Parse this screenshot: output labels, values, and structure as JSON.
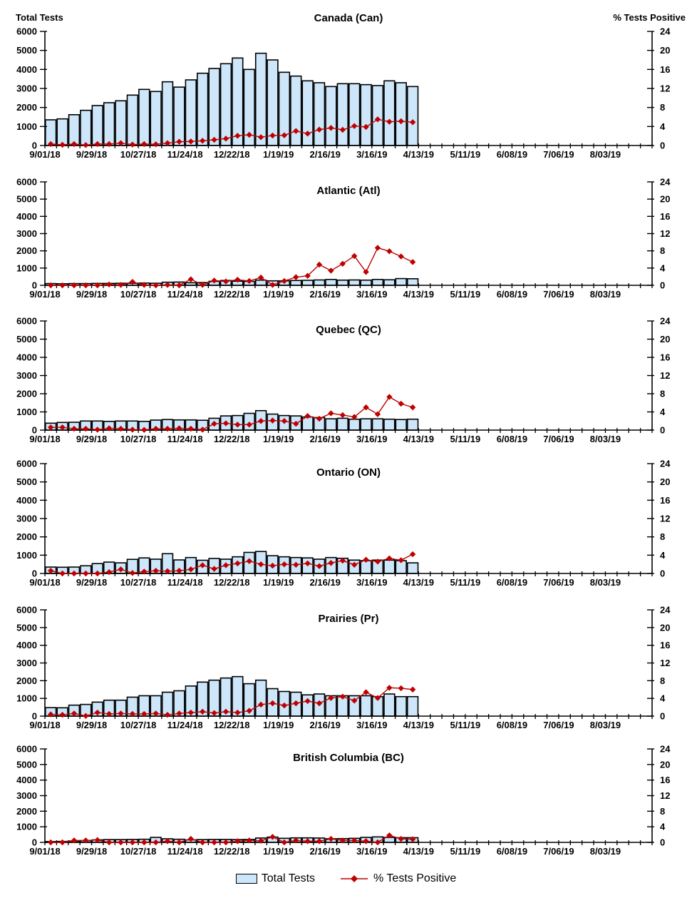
{
  "figure": {
    "left_axis_title": "Total Tests",
    "right_axis_title": "% Tests Positive",
    "legend": {
      "total_tests": "Total Tests",
      "pct_positive": "% Tests Positive"
    },
    "colors": {
      "bar_fill": "#CDE6FA",
      "bar_stroke": "#000000",
      "line": "#C00000",
      "text": "#000000"
    }
  },
  "chart_data": [
    {
      "type": "bar",
      "title": "Canada (Can)",
      "categories": [
        "9/01/18",
        "9/08/18",
        "9/15/18",
        "9/22/18",
        "9/29/18",
        "10/06/18",
        "10/13/18",
        "10/20/18",
        "10/27/18",
        "11/03/18",
        "11/10/18",
        "11/17/18",
        "11/24/18",
        "12/01/18",
        "12/08/18",
        "12/15/18",
        "12/22/18",
        "12/29/18",
        "1/05/19",
        "1/12/19",
        "1/19/19",
        "1/26/19",
        "2/02/19",
        "2/09/19",
        "2/16/19",
        "2/23/19",
        "3/02/19",
        "3/09/19",
        "3/16/19",
        "3/23/19",
        "3/30/19",
        "4/06/19"
      ],
      "xlabel": "",
      "ylabel_left": "Total Tests",
      "ylabel_right": "% Tests Positive",
      "ylim_left": [
        0,
        6000
      ],
      "ylim_right": [
        0,
        24
      ],
      "x_tick_labels": [
        "9/01/18",
        "9/29/18",
        "10/27/18",
        "11/24/18",
        "12/22/18",
        "1/19/19",
        "2/16/19",
        "3/16/19",
        "4/13/19",
        "5/11/19",
        "6/08/19",
        "7/06/19",
        "8/03/19"
      ],
      "series": [
        {
          "name": "Total Tests",
          "render": "bar",
          "axis": "left",
          "values": [
            1350,
            1400,
            1620,
            1850,
            2100,
            2250,
            2350,
            2650,
            2950,
            2840,
            3350,
            3070,
            3450,
            3800,
            4050,
            4300,
            4600,
            4000,
            4850,
            4500,
            3850,
            3650,
            3400,
            3300,
            3100,
            3250,
            3250,
            3200,
            3150,
            3400,
            3300,
            3100
          ]
        },
        {
          "name": "% Tests Positive",
          "render": "line",
          "axis": "right",
          "values": [
            0.3,
            0.15,
            0.3,
            0.1,
            0.3,
            0.3,
            0.5,
            0.2,
            0.3,
            0.25,
            0.5,
            0.8,
            0.85,
            1.0,
            1.2,
            1.45,
            2.05,
            2.25,
            1.75,
            2.1,
            2.15,
            3.05,
            2.5,
            3.35,
            3.7,
            3.3,
            4.1,
            3.9,
            5.5,
            5.0,
            5.1,
            4.9
          ]
        }
      ]
    },
    {
      "type": "bar",
      "title": "Atlantic (Atl)",
      "categories": [
        "9/01/18",
        "9/08/18",
        "9/15/18",
        "9/22/18",
        "9/29/18",
        "10/06/18",
        "10/13/18",
        "10/20/18",
        "10/27/18",
        "11/03/18",
        "11/10/18",
        "11/17/18",
        "11/24/18",
        "12/01/18",
        "12/08/18",
        "12/15/18",
        "12/22/18",
        "12/29/18",
        "1/05/19",
        "1/12/19",
        "1/19/19",
        "1/26/19",
        "2/02/19",
        "2/09/19",
        "2/16/19",
        "2/23/19",
        "3/02/19",
        "3/09/19",
        "3/16/19",
        "3/23/19",
        "3/30/19",
        "4/06/19"
      ],
      "ylim_left": [
        0,
        6000
      ],
      "ylim_right": [
        0,
        24
      ],
      "x_tick_labels": [
        "9/01/18",
        "9/29/18",
        "10/27/18",
        "11/24/18",
        "12/22/18",
        "1/19/19",
        "2/16/19",
        "3/16/19",
        "4/13/19",
        "5/11/19",
        "6/08/19",
        "7/06/19",
        "8/03/19"
      ],
      "series": [
        {
          "name": "Total Tests",
          "render": "bar",
          "axis": "left",
          "values": [
            100,
            90,
            100,
            100,
            110,
            110,
            120,
            120,
            130,
            120,
            180,
            190,
            150,
            160,
            230,
            280,
            240,
            230,
            300,
            260,
            260,
            280,
            290,
            310,
            340,
            300,
            310,
            300,
            340,
            320,
            390,
            380
          ]
        },
        {
          "name": "% Tests Positive",
          "render": "line",
          "axis": "right",
          "values": [
            0,
            0,
            0,
            0,
            0,
            0.2,
            0.1,
            0.8,
            0.1,
            0,
            0.1,
            0,
            1.4,
            0.1,
            1.1,
            0.9,
            1.3,
            1.0,
            1.8,
            0.1,
            1.0,
            1.9,
            2.2,
            4.8,
            3.4,
            5.0,
            6.8,
            3.1,
            8.7,
            7.9,
            6.7,
            5.4
          ]
        }
      ]
    },
    {
      "type": "bar",
      "title": "Quebec (QC)",
      "categories": [
        "9/01/18",
        "9/08/18",
        "9/15/18",
        "9/22/18",
        "9/29/18",
        "10/06/18",
        "10/13/18",
        "10/20/18",
        "10/27/18",
        "11/03/18",
        "11/10/18",
        "11/17/18",
        "11/24/18",
        "12/01/18",
        "12/08/18",
        "12/15/18",
        "12/22/18",
        "12/29/18",
        "1/05/19",
        "1/12/19",
        "1/19/19",
        "1/26/19",
        "2/02/19",
        "2/09/19",
        "2/16/19",
        "2/23/19",
        "3/02/19",
        "3/09/19",
        "3/16/19",
        "3/23/19",
        "3/30/19",
        "4/06/19"
      ],
      "ylim_left": [
        0,
        6000
      ],
      "ylim_right": [
        0,
        24
      ],
      "x_tick_labels": [
        "9/01/18",
        "9/29/18",
        "10/27/18",
        "11/24/18",
        "12/22/18",
        "1/19/19",
        "2/16/19",
        "3/16/19",
        "4/13/19",
        "5/11/19",
        "6/08/19",
        "7/06/19",
        "8/03/19"
      ],
      "series": [
        {
          "name": "Total Tests",
          "render": "bar",
          "axis": "left",
          "values": [
            380,
            420,
            430,
            500,
            500,
            480,
            500,
            500,
            480,
            550,
            580,
            560,
            560,
            540,
            650,
            780,
            800,
            920,
            1070,
            880,
            800,
            780,
            720,
            690,
            620,
            650,
            600,
            620,
            620,
            600,
            580,
            600
          ]
        },
        {
          "name": "% Tests Positive",
          "render": "line",
          "axis": "right",
          "values": [
            0.6,
            0.6,
            0.3,
            0.3,
            0.1,
            0.4,
            0.3,
            0.1,
            0.05,
            0.3,
            0.3,
            0.4,
            0.3,
            0.1,
            1.4,
            1.5,
            1.2,
            1.2,
            2.0,
            2.1,
            2.0,
            1.4,
            3.1,
            2.5,
            3.7,
            3.3,
            2.9,
            5.0,
            3.5,
            7.3,
            5.8,
            5.0
          ]
        }
      ]
    },
    {
      "type": "bar",
      "title": "Ontario (ON)",
      "categories": [
        "9/01/18",
        "9/08/18",
        "9/15/18",
        "9/22/18",
        "9/29/18",
        "10/06/18",
        "10/13/18",
        "10/20/18",
        "10/27/18",
        "11/03/18",
        "11/10/18",
        "11/17/18",
        "11/24/18",
        "12/01/18",
        "12/08/18",
        "12/15/18",
        "12/22/18",
        "12/29/18",
        "1/05/19",
        "1/12/19",
        "1/19/19",
        "1/26/19",
        "2/02/19",
        "2/09/19",
        "2/16/19",
        "2/23/19",
        "3/02/19",
        "3/09/19",
        "3/16/19",
        "3/23/19",
        "3/30/19",
        "4/06/19"
      ],
      "ylim_left": [
        0,
        6000
      ],
      "ylim_right": [
        0,
        24
      ],
      "x_tick_labels": [
        "9/01/18",
        "9/29/18",
        "10/27/18",
        "11/24/18",
        "12/22/18",
        "1/19/19",
        "2/16/19",
        "3/16/19",
        "4/13/19",
        "5/11/19",
        "6/08/19",
        "7/06/19",
        "8/03/19"
      ],
      "series": [
        {
          "name": "Total Tests",
          "render": "bar",
          "axis": "left",
          "values": [
            350,
            340,
            350,
            420,
            540,
            620,
            580,
            770,
            850,
            780,
            1080,
            740,
            870,
            720,
            820,
            780,
            910,
            1150,
            1200,
            970,
            910,
            870,
            850,
            780,
            870,
            830,
            730,
            700,
            730,
            730,
            700,
            580
          ]
        },
        {
          "name": "% Tests Positive",
          "render": "line",
          "axis": "right",
          "values": [
            0.6,
            0,
            0,
            0,
            0,
            0.3,
            0.9,
            0.1,
            0.4,
            0.6,
            0.5,
            0.6,
            0.9,
            1.8,
            1.0,
            1.8,
            2.2,
            2.7,
            2.0,
            1.7,
            2.0,
            1.9,
            2.2,
            1.6,
            2.3,
            2.8,
            1.9,
            3.0,
            2.6,
            3.3,
            2.9,
            4.2
          ]
        }
      ]
    },
    {
      "type": "bar",
      "title": "Prairies (Pr)",
      "categories": [
        "9/01/18",
        "9/08/18",
        "9/15/18",
        "9/22/18",
        "9/29/18",
        "10/06/18",
        "10/13/18",
        "10/20/18",
        "10/27/18",
        "11/03/18",
        "11/10/18",
        "11/17/18",
        "11/24/18",
        "12/01/18",
        "12/08/18",
        "12/15/18",
        "12/22/18",
        "12/29/18",
        "1/05/19",
        "1/12/19",
        "1/19/19",
        "1/26/19",
        "2/02/19",
        "2/09/19",
        "2/16/19",
        "2/23/19",
        "3/02/19",
        "3/09/19",
        "3/16/19",
        "3/23/19",
        "3/30/19",
        "4/06/19"
      ],
      "ylim_left": [
        0,
        6000
      ],
      "ylim_right": [
        0,
        24
      ],
      "x_tick_labels": [
        "9/01/18",
        "9/29/18",
        "10/27/18",
        "11/24/18",
        "12/22/18",
        "1/19/19",
        "2/16/19",
        "3/16/19",
        "4/13/19",
        "5/11/19",
        "6/08/19",
        "7/06/19",
        "8/03/19"
      ],
      "series": [
        {
          "name": "Total Tests",
          "render": "bar",
          "axis": "left",
          "values": [
            480,
            470,
            620,
            660,
            790,
            900,
            900,
            1070,
            1150,
            1150,
            1350,
            1430,
            1700,
            1920,
            2030,
            2150,
            2230,
            1830,
            2030,
            1550,
            1390,
            1350,
            1200,
            1250,
            1150,
            1150,
            1150,
            1150,
            1100,
            1250,
            1100,
            1100
          ]
        },
        {
          "name": "% Tests Positive",
          "render": "line",
          "axis": "right",
          "values": [
            0.4,
            0.3,
            0.6,
            0.05,
            0.8,
            0.5,
            0.6,
            0.5,
            0.5,
            0.6,
            0.3,
            0.6,
            0.8,
            1.0,
            0.7,
            1.0,
            0.8,
            1.2,
            2.6,
            2.9,
            2.4,
            2.9,
            3.4,
            2.9,
            4.1,
            4.4,
            3.5,
            5.4,
            4.1,
            6.4,
            6.3,
            6.0
          ]
        }
      ]
    },
    {
      "type": "bar",
      "title": "British Columbia (BC)",
      "categories": [
        "9/01/18",
        "9/08/18",
        "9/15/18",
        "9/22/18",
        "9/29/18",
        "10/06/18",
        "10/13/18",
        "10/20/18",
        "10/27/18",
        "11/03/18",
        "11/10/18",
        "11/17/18",
        "11/24/18",
        "12/01/18",
        "12/08/18",
        "12/15/18",
        "12/22/18",
        "12/29/18",
        "1/05/19",
        "1/12/19",
        "1/19/19",
        "1/26/19",
        "2/02/19",
        "2/09/19",
        "2/16/19",
        "2/23/19",
        "3/02/19",
        "3/09/19",
        "3/16/19",
        "3/23/19",
        "3/30/19",
        "4/06/19"
      ],
      "ylim_left": [
        0,
        6000
      ],
      "ylim_right": [
        0,
        24
      ],
      "x_tick_labels": [
        "9/01/18",
        "9/29/18",
        "10/27/18",
        "11/24/18",
        "12/22/18",
        "1/19/19",
        "2/16/19",
        "3/16/19",
        "4/13/19",
        "5/11/19",
        "6/08/19",
        "7/06/19",
        "8/03/19"
      ],
      "series": [
        {
          "name": "Total Tests",
          "render": "bar",
          "axis": "left",
          "values": [
            50,
            60,
            90,
            110,
            160,
            180,
            180,
            190,
            200,
            320,
            230,
            200,
            160,
            180,
            190,
            190,
            180,
            190,
            280,
            340,
            260,
            290,
            290,
            280,
            230,
            240,
            260,
            320,
            350,
            320,
            300,
            300
          ]
        },
        {
          "name": "% Tests Positive",
          "render": "line",
          "axis": "right",
          "values": [
            0,
            0,
            0.5,
            0.5,
            0.6,
            0,
            0,
            0,
            0,
            0,
            0.3,
            0,
            0.9,
            0,
            0,
            0,
            0.3,
            0.5,
            0.4,
            1.4,
            0,
            0.5,
            0.3,
            0.3,
            0.9,
            0.5,
            0.5,
            0.3,
            0,
            1.8,
            0.9,
            0.8
          ]
        }
      ]
    }
  ]
}
